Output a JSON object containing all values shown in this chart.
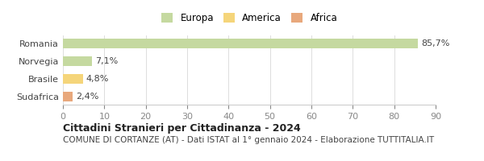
{
  "categories": [
    "Romania",
    "Norvegia",
    "Brasile",
    "Sudafrica"
  ],
  "values": [
    85.7,
    7.1,
    4.8,
    2.4
  ],
  "labels": [
    "85,7%",
    "7,1%",
    "4,8%",
    "2,4%"
  ],
  "colors": [
    "#c5d9a0",
    "#c5d9a0",
    "#f5d57a",
    "#e8a87c"
  ],
  "legend": [
    {
      "label": "Europa",
      "color": "#c5d9a0"
    },
    {
      "label": "America",
      "color": "#f5d57a"
    },
    {
      "label": "Africa",
      "color": "#e8a87c"
    }
  ],
  "xlim": [
    0,
    90
  ],
  "xticks": [
    0,
    10,
    20,
    30,
    40,
    50,
    60,
    70,
    80,
    90
  ],
  "title": "Cittadini Stranieri per Cittadinanza - 2024",
  "subtitle": "COMUNE DI CORTANZE (AT) - Dati ISTAT al 1° gennaio 2024 - Elaborazione TUTTITALIA.IT",
  "background_color": "#ffffff",
  "bar_height": 0.55,
  "title_fontsize": 9,
  "subtitle_fontsize": 7.5,
  "tick_fontsize": 8,
  "label_fontsize": 8
}
